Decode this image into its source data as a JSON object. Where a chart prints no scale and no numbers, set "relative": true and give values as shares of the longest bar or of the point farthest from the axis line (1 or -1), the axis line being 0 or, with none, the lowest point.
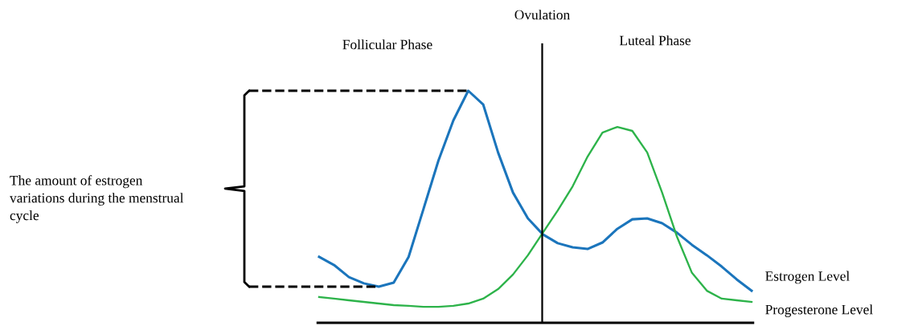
{
  "chart_data": {
    "type": "line",
    "relative": true,
    "categories": [
      null,
      null,
      null,
      null,
      null,
      null,
      null,
      null,
      null,
      null,
      null,
      null,
      null,
      null,
      null,
      null,
      null,
      null,
      null,
      null,
      null,
      null,
      null,
      null,
      null,
      null,
      null,
      null,
      null,
      null
    ],
    "series": [
      {
        "name": "Estrogen Level",
        "color": "#1b75bc",
        "values": [
          0.284,
          0.249,
          0.197,
          0.17,
          0.156,
          0.173,
          0.284,
          0.491,
          0.699,
          0.872,
          1.0,
          0.941,
          0.734,
          0.561,
          0.45,
          0.381,
          0.343,
          0.325,
          0.318,
          0.346,
          0.405,
          0.446,
          0.45,
          0.429,
          0.388,
          0.336,
          0.291,
          0.242,
          0.187,
          0.138
        ]
      },
      {
        "name": "Progesterone Level",
        "color": "#2db34a",
        "values": [
          0.111,
          0.104,
          0.097,
          0.09,
          0.083,
          0.076,
          0.073,
          0.069,
          0.069,
          0.073,
          0.083,
          0.104,
          0.145,
          0.208,
          0.291,
          0.388,
          0.484,
          0.588,
          0.716,
          0.82,
          0.844,
          0.827,
          0.734,
          0.561,
          0.37,
          0.215,
          0.138,
          0.104,
          0.097,
          0.09
        ]
      }
    ],
    "annotations": [
      "Follicular Phase",
      "Luteal Phase",
      "The amount of estrogen variations during the menstrual cycle",
      "Ovulation"
    ],
    "grid": false,
    "legend": false,
    "marker": "none",
    "line_style": "solid"
  }
}
